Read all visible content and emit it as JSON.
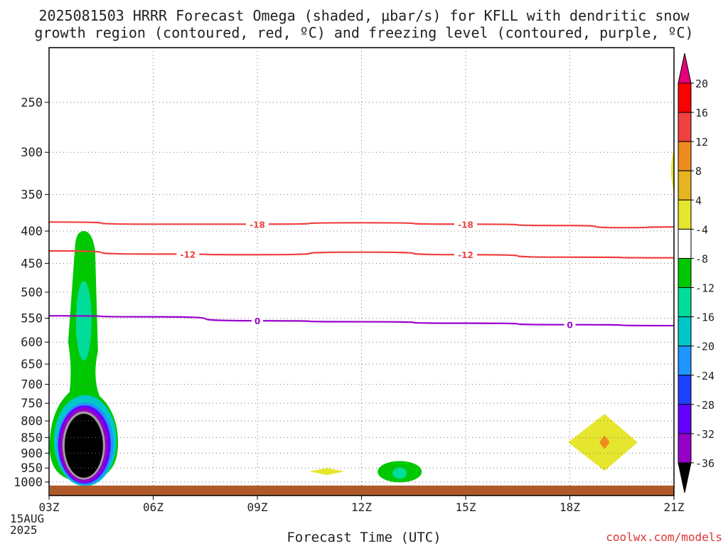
{
  "title": {
    "line1": "2025081503 HRRR Forecast Omega (shaded, μbar/s) for KFLL with dendritic snow",
    "line2": "growth region (contoured, red, ºC) and freezing level (contoured, purple, ºC)"
  },
  "x_axis_label": "Forecast Time (UTC)",
  "date_label": {
    "day": "15AUG",
    "year": "2025"
  },
  "credit": "coolwx.com/models",
  "chart_data": {
    "type": "heatmap",
    "x_ticks": [
      "03Z",
      "06Z",
      "09Z",
      "12Z",
      "15Z",
      "18Z",
      "21Z"
    ],
    "y_ticks": [
      250,
      300,
      350,
      400,
      450,
      500,
      550,
      600,
      650,
      700,
      750,
      800,
      850,
      900,
      950,
      1000
    ],
    "ylabel_scale": "log-pressure (hPa), top to bottom",
    "xlim": [
      "03Z",
      "21Z"
    ],
    "grid": true,
    "colorbar": {
      "labels": [
        "20",
        "16",
        "12",
        "8",
        "4",
        "-4",
        "-8",
        "-12",
        "-16",
        "-20",
        "-24",
        "-28",
        "-32",
        "-36"
      ],
      "colors": [
        "#ff0000",
        "#f04040",
        "#ef8c1e",
        "#e6b420",
        "#e6e62e",
        "#ffffff",
        "#00c800",
        "#00dc9a",
        "#00c8c8",
        "#1e96ff",
        "#1e40ff",
        "#6400ff",
        "#9600c8",
        "#a0a0a0",
        "#000000"
      ],
      "top_triangle": "#e6007a",
      "bottom_triangle": "#000000"
    },
    "contours": [
      {
        "name": "-18",
        "color": "#f04040",
        "points": [
          [
            3,
            387
          ],
          [
            6,
            390
          ],
          [
            9,
            390
          ],
          [
            12,
            388
          ],
          [
            15,
            390
          ],
          [
            18,
            392
          ],
          [
            19.5,
            395
          ],
          [
            21,
            394
          ]
        ],
        "label_at": [
          9,
          15
        ]
      },
      {
        "name": "-12",
        "color": "#f04040",
        "points": [
          [
            3,
            430
          ],
          [
            6,
            435
          ],
          [
            9,
            436
          ],
          [
            12,
            432
          ],
          [
            15,
            436
          ],
          [
            18,
            440
          ],
          [
            21,
            441
          ]
        ],
        "label_at": [
          7,
          15
        ]
      },
      {
        "name": "0",
        "color": "#9900cc",
        "points": [
          [
            3,
            545
          ],
          [
            6,
            547
          ],
          [
            9,
            555
          ],
          [
            12,
            557
          ],
          [
            15,
            560
          ],
          [
            18,
            563
          ],
          [
            21,
            565
          ]
        ],
        "label_at": [
          9,
          18
        ]
      }
    ],
    "shaded_regions": [
      {
        "kind": "omega",
        "range": "-8 to -4",
        "color": "#00c800",
        "time_center": 4.0,
        "pressure_range": [
          400,
          1000
        ]
      },
      {
        "kind": "omega",
        "range": "-12 to -8",
        "color": "#00dc9a",
        "time_center": 4.0,
        "pressure_range": [
          500,
          620
        ]
      },
      {
        "kind": "omega",
        "range": "< -36",
        "color": "#000000",
        "time_center": 4.0,
        "pressure_range": [
          770,
          990
        ]
      },
      {
        "kind": "omega",
        "range": "4 to 8",
        "color": "#e6e62e",
        "time_center": 11.0,
        "pressure_range": [
          950,
          975
        ]
      },
      {
        "kind": "omega",
        "range": "-8 to -4",
        "color": "#00c800",
        "time_center": 13.0,
        "pressure_range": [
          935,
          995
        ]
      },
      {
        "kind": "omega",
        "range": "4 to 8",
        "color": "#e6e62e",
        "time_center": 19.0,
        "pressure_range": [
          780,
          960
        ]
      },
      {
        "kind": "omega",
        "range": "12 to 16",
        "color": "#ef8c1e",
        "time_center": 19.0,
        "pressure_range": [
          845,
          885
        ]
      },
      {
        "kind": "omega",
        "range": "4 to 8",
        "color": "#e6e62e",
        "time_center": 21.0,
        "pressure_range": [
          300,
          345
        ]
      }
    ],
    "terrain_color": "#b05a2a"
  }
}
